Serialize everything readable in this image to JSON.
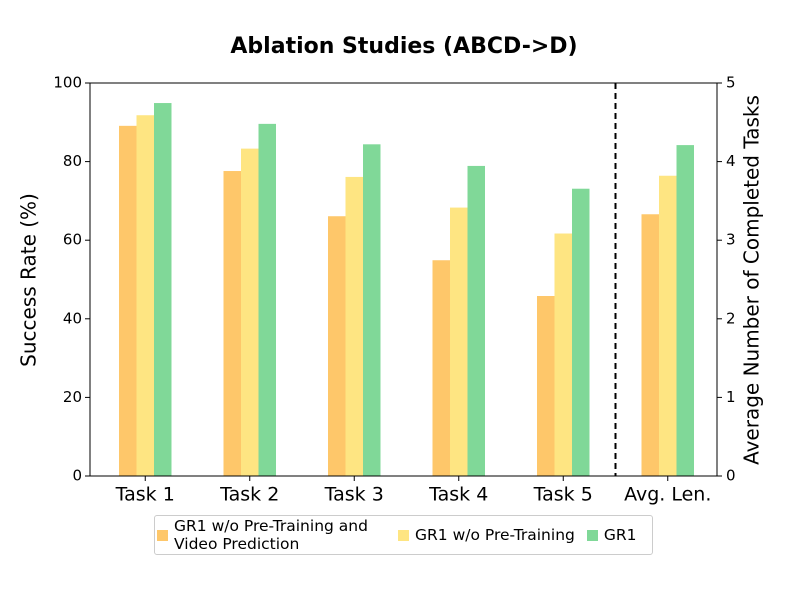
{
  "chart_data": {
    "type": "bar",
    "title": "Ablation Studies (ABCD->D)",
    "ylabel": "Success Rate (%)",
    "y2label": "Average Number of Completed Tasks",
    "categories": [
      "Task 1",
      "Task 2",
      "Task 3",
      "Task 4",
      "Task 5",
      "Avg. Len."
    ],
    "axis_by_category": [
      "y",
      "y",
      "y",
      "y",
      "y",
      "y2"
    ],
    "series": [
      {
        "name": "GR1 w/o Pre-Training and Video Prediction",
        "color": "#fec76a",
        "values": [
          89.1,
          77.6,
          66.1,
          54.9,
          45.8,
          3.33
        ]
      },
      {
        "name": "GR1 w/o Pre-Training",
        "color": "#fee582",
        "values": [
          91.8,
          83.3,
          76.1,
          68.3,
          61.7,
          3.82
        ]
      },
      {
        "name": "GR1",
        "color": "#80d898",
        "values": [
          94.9,
          89.6,
          84.4,
          78.9,
          73.1,
          4.21
        ]
      }
    ],
    "ylim": [
      0,
      100
    ],
    "yticks": [
      0,
      20,
      40,
      60,
      80,
      100
    ],
    "y2lim": [
      0,
      5
    ],
    "y2ticks": [
      0,
      1,
      2,
      3,
      4,
      5
    ],
    "divider": true,
    "legend": "bottom"
  }
}
